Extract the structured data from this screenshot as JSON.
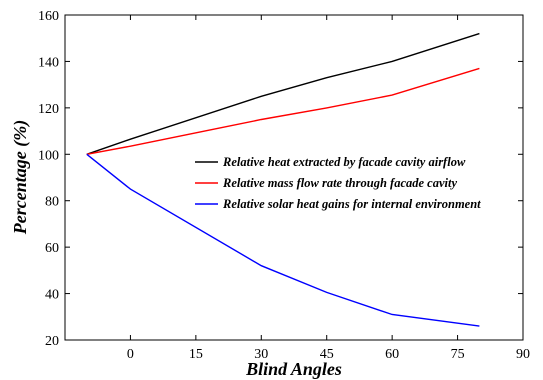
{
  "chart_data": {
    "type": "line",
    "xlabel": "Blind Angles",
    "ylabel": "Percentage (%)",
    "xlim": [
      -15,
      90
    ],
    "ylim": [
      20,
      160
    ],
    "xticks": [
      0,
      15,
      30,
      45,
      60,
      75,
      90
    ],
    "yticks": [
      20,
      40,
      60,
      80,
      100,
      120,
      140,
      160
    ],
    "grid": false,
    "legend_position": "right",
    "series": [
      {
        "name": "Relative heat extracted by facade cavity airflow",
        "color": "#000000",
        "x": [
          -10,
          0,
          30,
          45,
          60,
          80
        ],
        "y": [
          100,
          106.5,
          125,
          133,
          140,
          152
        ]
      },
      {
        "name": "Relative mass flow rate through facade cavity",
        "color": "#ff0000",
        "x": [
          -10,
          0,
          30,
          45,
          60,
          80
        ],
        "y": [
          100,
          103.5,
          115,
          120,
          125.5,
          137
        ]
      },
      {
        "name": "Relative solar heat gains for internal environment",
        "color": "#0000ff",
        "x": [
          -10,
          0,
          30,
          45,
          60,
          80
        ],
        "y": [
          100,
          85,
          52,
          40.5,
          31,
          26
        ]
      }
    ]
  }
}
